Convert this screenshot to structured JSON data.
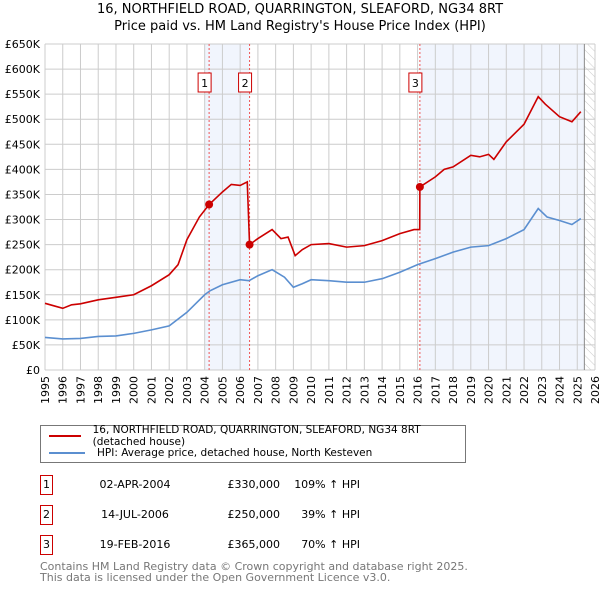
{
  "chart_data": {
    "type": "line",
    "title": "16, NORTHFIELD ROAD, QUARRINGTON, SLEAFORD, NG34 8RT",
    "subtitle": "Price paid vs. HM Land Registry's House Price Index (HPI)",
    "xlim": [
      1995,
      2026
    ],
    "ylim": [
      0,
      650000
    ],
    "x_ticks": [
      1995,
      1996,
      1997,
      1998,
      1999,
      2000,
      2001,
      2002,
      2003,
      2004,
      2005,
      2006,
      2007,
      2008,
      2009,
      2010,
      2011,
      2012,
      2013,
      2014,
      2015,
      2016,
      2017,
      2018,
      2019,
      2020,
      2021,
      2022,
      2023,
      2024,
      2025,
      2026
    ],
    "y_ticks": [
      {
        "v": 0,
        "label": "£0"
      },
      {
        "v": 50000,
        "label": "£50K"
      },
      {
        "v": 100000,
        "label": "£100K"
      },
      {
        "v": 150000,
        "label": "£150K"
      },
      {
        "v": 200000,
        "label": "£200K"
      },
      {
        "v": 250000,
        "label": "£250K"
      },
      {
        "v": 300000,
        "label": "£300K"
      },
      {
        "v": 350000,
        "label": "£350K"
      },
      {
        "v": 400000,
        "label": "£400K"
      },
      {
        "v": 450000,
        "label": "£450K"
      },
      {
        "v": 500000,
        "label": "£500K"
      },
      {
        "v": 550000,
        "label": "£550K"
      },
      {
        "v": 600000,
        "label": "£600K"
      },
      {
        "v": 650000,
        "label": "£650K"
      }
    ],
    "grid": true,
    "series": [
      {
        "name": "16, NORTHFIELD ROAD, QUARRINGTON, SLEAFORD, NG34 8RT (detached house)",
        "color": "#cc0000",
        "x": [
          1995,
          1995.5,
          1996,
          1996.5,
          1997,
          1998,
          1999,
          2000,
          2001,
          2002,
          2002.5,
          2003,
          2003.7,
          2004.25,
          2005,
          2005.5,
          2006,
          2006.4,
          2006.53,
          2007,
          2007.8,
          2008.3,
          2008.7,
          2009.1,
          2009.5,
          2010,
          2011,
          2012,
          2013,
          2014,
          2015,
          2015.8,
          2016.12,
          2016.13,
          2017,
          2017.5,
          2018,
          2019,
          2019.5,
          2020,
          2020.3,
          2021,
          2022,
          2022.8,
          2023.2,
          2024,
          2024.7,
          2025.2
        ],
        "y": [
          133000,
          128000,
          123000,
          130000,
          132000,
          140000,
          145000,
          150000,
          168000,
          190000,
          210000,
          260000,
          305000,
          330000,
          355000,
          370000,
          368000,
          375000,
          250000,
          262000,
          280000,
          262000,
          265000,
          228000,
          240000,
          250000,
          252000,
          245000,
          248000,
          258000,
          272000,
          280000,
          280000,
          365000,
          385000,
          400000,
          405000,
          428000,
          425000,
          430000,
          420000,
          455000,
          490000,
          545000,
          530000,
          505000,
          495000,
          515000
        ]
      },
      {
        "name": "HPI: Average price, detached house, North Kesteven",
        "color": "#5b8fd0",
        "x": [
          1995,
          1996,
          1997,
          1998,
          1999,
          2000,
          2001,
          2002,
          2003,
          2004,
          2004.3,
          2005,
          2006,
          2006.5,
          2007,
          2007.8,
          2008.5,
          2009,
          2009.5,
          2010,
          2011,
          2012,
          2013,
          2014,
          2015,
          2016,
          2017,
          2018,
          2019,
          2020,
          2021,
          2022,
          2022.8,
          2023.3,
          2024,
          2024.7,
          2025.2
        ],
        "y": [
          65000,
          62000,
          63000,
          67000,
          68000,
          73000,
          80000,
          88000,
          115000,
          150000,
          158000,
          170000,
          180000,
          178000,
          188000,
          200000,
          185000,
          165000,
          172000,
          180000,
          178000,
          175000,
          175000,
          182000,
          195000,
          210000,
          222000,
          235000,
          245000,
          248000,
          262000,
          280000,
          322000,
          305000,
          298000,
          290000,
          302000
        ]
      }
    ],
    "sales": [
      {
        "n": "1",
        "x": 2004.25,
        "price": 330000,
        "date": "02-APR-2004",
        "price_label": "£330,000",
        "hpi": "109% ↑ HPI"
      },
      {
        "n": "2",
        "x": 2006.53,
        "price": 250000,
        "date": "14-JUL-2006",
        "price_label": "£250,000",
        "hpi": "39% ↑ HPI"
      },
      {
        "n": "3",
        "x": 2016.13,
        "price": 365000,
        "date": "19-FEB-2016",
        "price_label": "£365,000",
        "hpi": "70% ↑ HPI"
      }
    ],
    "shaded_ranges": [
      [
        2004.0,
        2006.53
      ],
      [
        2016.13,
        2025.4
      ]
    ],
    "forecast_from": 2025.4
  },
  "legend": {
    "red": "16, NORTHFIELD ROAD, QUARRINGTON, SLEAFORD, NG34 8RT (detached house)",
    "blue": "HPI: Average price, detached house, North Kesteven"
  },
  "footer": {
    "line1": "Contains HM Land Registry data © Crown copyright and database right 2025.",
    "line2": "This data is licensed under the Open Government Licence v3.0."
  }
}
